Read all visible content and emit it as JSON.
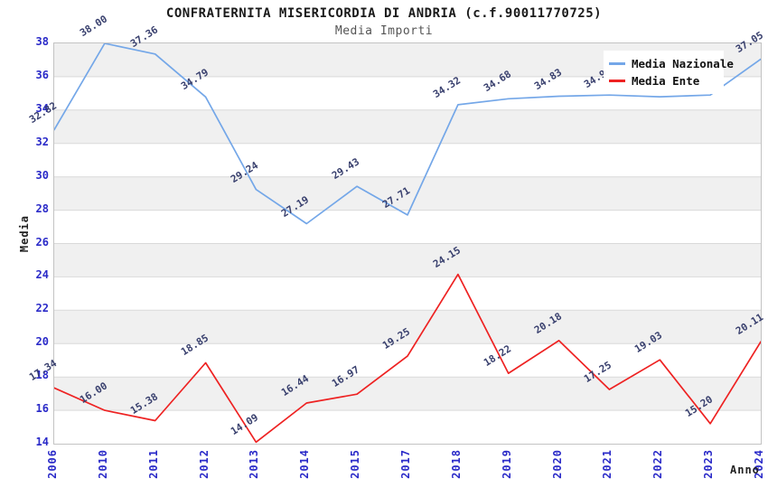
{
  "header": {
    "title": "CONFRATERNITA MISERICORDIA DI ANDRIA (c.f.90011770725)",
    "subtitle": "Media Importi"
  },
  "legend": {
    "items": [
      {
        "label": "Media Nazionale",
        "color": "#74a7e8"
      },
      {
        "label": "Media Ente",
        "color": "#ee2222"
      }
    ]
  },
  "chart_data": {
    "type": "line",
    "title": "CONFRATERNITA MISERICORDIA DI ANDRIA (c.f.90011770725)",
    "subtitle": "Media Importi",
    "xlabel": "Anno",
    "ylabel": "Media",
    "categories": [
      "2006",
      "2010",
      "2011",
      "2012",
      "2013",
      "2014",
      "2015",
      "2017",
      "2018",
      "2019",
      "2020",
      "2021",
      "2022",
      "2023",
      "2024"
    ],
    "series": [
      {
        "name": "Media Nazionale",
        "color": "#74a7e8",
        "values": [
          32.82,
          38.0,
          37.36,
          34.79,
          29.24,
          27.19,
          29.43,
          27.71,
          34.32,
          34.68,
          34.83,
          34.9,
          34.8,
          34.9,
          37.05
        ],
        "point_labels": [
          "32.82",
          "38.00",
          "37.36",
          "34.79",
          "29.24",
          "27.19",
          "29.43",
          "27.71",
          "34.32",
          "34.68",
          "34.83",
          "34.90",
          "34.80",
          "34.90",
          "37.05"
        ]
      },
      {
        "name": "Media Ente",
        "color": "#ee2222",
        "values": [
          17.34,
          16.0,
          15.38,
          18.85,
          14.09,
          16.44,
          16.97,
          19.25,
          24.15,
          18.22,
          20.18,
          17.25,
          19.03,
          15.2,
          20.11
        ],
        "point_labels": [
          "17.34",
          "16.00",
          "15.38",
          "18.85",
          "14.09",
          "16.44",
          "16.97",
          "19.25",
          "24.15",
          "18.22",
          "20.18",
          "17.25",
          "19.03",
          "15.20",
          "20.11"
        ]
      }
    ],
    "ylim": [
      14,
      38
    ],
    "ytick_step": 2,
    "yticks": [
      14,
      16,
      18,
      20,
      22,
      24,
      26,
      28,
      30,
      32,
      34,
      36,
      38
    ],
    "grid": "horizontal-bands-alternating",
    "legend_position": "top-right-inside",
    "colors": {
      "band_fill": "#f0f0f0",
      "grid_line": "#d9d9d9",
      "plot_border": "#c3c3c3",
      "axis_tick_label": "#2a2ac8",
      "point_label": "#39406e",
      "title": "#1a1a1a",
      "subtitle": "#555555"
    }
  }
}
